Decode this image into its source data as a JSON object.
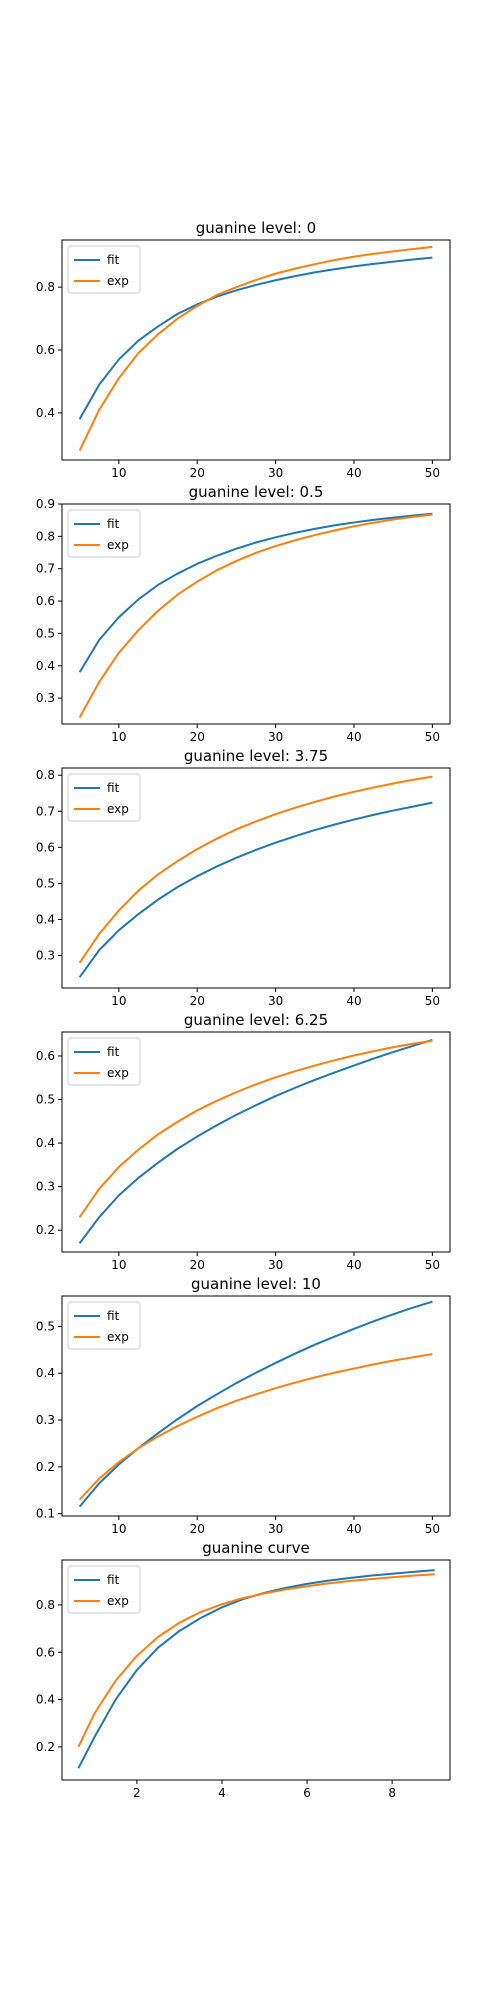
{
  "figure": {
    "colors": {
      "fit": "#1f77b4",
      "exp": "#ff7f0e",
      "axes": "#000000",
      "legend_border": "#cccccc"
    }
  },
  "chart_data": [
    {
      "type": "line",
      "title": "guanine level: 0",
      "xlabel": "",
      "ylabel": "",
      "xlim": [
        2.75,
        52.25
      ],
      "ylim": [
        0.25,
        0.95
      ],
      "xticks": [
        10,
        20,
        30,
        40,
        50
      ],
      "yticks": [
        0.4,
        0.6,
        0.8
      ],
      "tick_format": 1,
      "legend": "upper left",
      "grid": false,
      "x": [
        5,
        7.5,
        10,
        12.5,
        15,
        17.5,
        20,
        22.5,
        25,
        27.5,
        30,
        32.5,
        35,
        37.5,
        40,
        42.5,
        45,
        47.5,
        50
      ],
      "series": [
        {
          "name": "fit",
          "color": "#1f77b4",
          "values": [
            0.38,
            0.49,
            0.57,
            0.63,
            0.675,
            0.715,
            0.745,
            0.77,
            0.79,
            0.807,
            0.822,
            0.835,
            0.847,
            0.857,
            0.866,
            0.874,
            0.881,
            0.888,
            0.894
          ]
        },
        {
          "name": "exp",
          "color": "#ff7f0e",
          "values": [
            0.28,
            0.41,
            0.51,
            0.59,
            0.65,
            0.7,
            0.74,
            0.775,
            0.8,
            0.823,
            0.843,
            0.859,
            0.873,
            0.886,
            0.897,
            0.906,
            0.914,
            0.921,
            0.928
          ]
        }
      ]
    },
    {
      "type": "line",
      "title": "guanine level: 0.5",
      "xlabel": "",
      "ylabel": "",
      "xlim": [
        2.75,
        52.25
      ],
      "ylim": [
        0.22,
        0.9
      ],
      "xticks": [
        10,
        20,
        30,
        40,
        50
      ],
      "yticks": [
        0.3,
        0.4,
        0.5,
        0.6,
        0.7,
        0.8,
        0.9
      ],
      "tick_format": 1,
      "legend": "upper left",
      "grid": false,
      "x": [
        5,
        7.5,
        10,
        12.5,
        15,
        17.5,
        20,
        22.5,
        25,
        27.5,
        30,
        32.5,
        35,
        37.5,
        40,
        42.5,
        45,
        47.5,
        50
      ],
      "series": [
        {
          "name": "fit",
          "color": "#1f77b4",
          "values": [
            0.38,
            0.48,
            0.55,
            0.605,
            0.65,
            0.685,
            0.715,
            0.74,
            0.762,
            0.781,
            0.797,
            0.811,
            0.823,
            0.834,
            0.843,
            0.851,
            0.858,
            0.864,
            0.87
          ]
        },
        {
          "name": "exp",
          "color": "#ff7f0e",
          "values": [
            0.24,
            0.35,
            0.44,
            0.51,
            0.57,
            0.62,
            0.66,
            0.695,
            0.724,
            0.749,
            0.77,
            0.788,
            0.804,
            0.818,
            0.831,
            0.842,
            0.852,
            0.86,
            0.867
          ]
        }
      ]
    },
    {
      "type": "line",
      "title": "guanine level: 3.75",
      "xlabel": "",
      "ylabel": "",
      "xlim": [
        2.75,
        52.25
      ],
      "ylim": [
        0.21,
        0.82
      ],
      "xticks": [
        10,
        20,
        30,
        40,
        50
      ],
      "yticks": [
        0.3,
        0.4,
        0.5,
        0.6,
        0.7,
        0.8
      ],
      "tick_format": 1,
      "legend": "upper left",
      "grid": false,
      "x": [
        5,
        7.5,
        10,
        12.5,
        15,
        17.5,
        20,
        22.5,
        25,
        27.5,
        30,
        32.5,
        35,
        37.5,
        40,
        42.5,
        45,
        47.5,
        50
      ],
      "series": [
        {
          "name": "fit",
          "color": "#1f77b4",
          "values": [
            0.24,
            0.315,
            0.37,
            0.415,
            0.455,
            0.49,
            0.52,
            0.547,
            0.571,
            0.593,
            0.613,
            0.631,
            0.648,
            0.663,
            0.677,
            0.69,
            0.702,
            0.713,
            0.724
          ]
        },
        {
          "name": "exp",
          "color": "#ff7f0e",
          "values": [
            0.28,
            0.36,
            0.425,
            0.48,
            0.525,
            0.562,
            0.595,
            0.624,
            0.65,
            0.672,
            0.692,
            0.71,
            0.726,
            0.741,
            0.754,
            0.766,
            0.777,
            0.787,
            0.796
          ]
        }
      ]
    },
    {
      "type": "line",
      "title": "guanine level: 6.25",
      "xlabel": "",
      "ylabel": "",
      "xlim": [
        2.75,
        52.25
      ],
      "ylim": [
        0.15,
        0.655
      ],
      "xticks": [
        10,
        20,
        30,
        40,
        50
      ],
      "yticks": [
        0.2,
        0.3,
        0.4,
        0.5,
        0.6
      ],
      "tick_format": 1,
      "legend": "upper left",
      "grid": false,
      "x": [
        5,
        7.5,
        10,
        12.5,
        15,
        17.5,
        20,
        22.5,
        25,
        27.5,
        30,
        32.5,
        35,
        37.5,
        40,
        42.5,
        45,
        47.5,
        50
      ],
      "series": [
        {
          "name": "fit",
          "color": "#1f77b4",
          "values": [
            0.17,
            0.23,
            0.28,
            0.32,
            0.355,
            0.387,
            0.415,
            0.441,
            0.465,
            0.487,
            0.508,
            0.527,
            0.545,
            0.562,
            0.578,
            0.594,
            0.609,
            0.623,
            0.637
          ]
        },
        {
          "name": "exp",
          "color": "#ff7f0e",
          "values": [
            0.23,
            0.295,
            0.345,
            0.385,
            0.42,
            0.449,
            0.475,
            0.497,
            0.517,
            0.535,
            0.551,
            0.565,
            0.578,
            0.59,
            0.601,
            0.611,
            0.62,
            0.628,
            0.635
          ]
        }
      ]
    },
    {
      "type": "line",
      "title": "guanine level: 10",
      "xlabel": "",
      "ylabel": "",
      "xlim": [
        2.75,
        52.25
      ],
      "ylim": [
        0.095,
        0.565
      ],
      "xticks": [
        10,
        20,
        30,
        40,
        50
      ],
      "yticks": [
        0.1,
        0.2,
        0.3,
        0.4,
        0.5
      ],
      "tick_format": 1,
      "legend": "upper left",
      "grid": false,
      "x": [
        5,
        7.5,
        10,
        12.5,
        15,
        17.5,
        20,
        22.5,
        25,
        27.5,
        30,
        32.5,
        35,
        37.5,
        40,
        42.5,
        45,
        47.5,
        50
      ],
      "series": [
        {
          "name": "fit",
          "color": "#1f77b4",
          "values": [
            0.115,
            0.165,
            0.205,
            0.24,
            0.272,
            0.302,
            0.33,
            0.355,
            0.379,
            0.401,
            0.422,
            0.442,
            0.461,
            0.478,
            0.495,
            0.511,
            0.526,
            0.54,
            0.553
          ]
        },
        {
          "name": "exp",
          "color": "#ff7f0e",
          "values": [
            0.13,
            0.175,
            0.21,
            0.24,
            0.265,
            0.287,
            0.307,
            0.325,
            0.341,
            0.355,
            0.368,
            0.38,
            0.391,
            0.401,
            0.41,
            0.419,
            0.427,
            0.434,
            0.441
          ]
        }
      ]
    },
    {
      "type": "line",
      "title": "guanine curve",
      "xlabel": "",
      "ylabel": "",
      "xlim": [
        0.24,
        9.36
      ],
      "ylim": [
        0.06,
        0.99
      ],
      "xticks": [
        2,
        4,
        6,
        8
      ],
      "yticks": [
        0.2,
        0.4,
        0.6,
        0.8
      ],
      "tick_format": 1,
      "legend": "upper left",
      "grid": false,
      "x": [
        0.625,
        1,
        1.5,
        2,
        2.5,
        3,
        3.5,
        4,
        4.5,
        5,
        5.5,
        6,
        6.5,
        7,
        7.5,
        8,
        8.5,
        9
      ],
      "series": [
        {
          "name": "fit",
          "color": "#1f77b4",
          "values": [
            0.11,
            0.24,
            0.4,
            0.525,
            0.62,
            0.69,
            0.745,
            0.79,
            0.825,
            0.851,
            0.872,
            0.889,
            0.903,
            0.914,
            0.924,
            0.932,
            0.94,
            0.947
          ]
        },
        {
          "name": "exp",
          "color": "#ff7f0e",
          "values": [
            0.2,
            0.34,
            0.48,
            0.585,
            0.665,
            0.725,
            0.77,
            0.803,
            0.829,
            0.849,
            0.866,
            0.879,
            0.891,
            0.901,
            0.909,
            0.917,
            0.924,
            0.93
          ]
        }
      ]
    }
  ]
}
